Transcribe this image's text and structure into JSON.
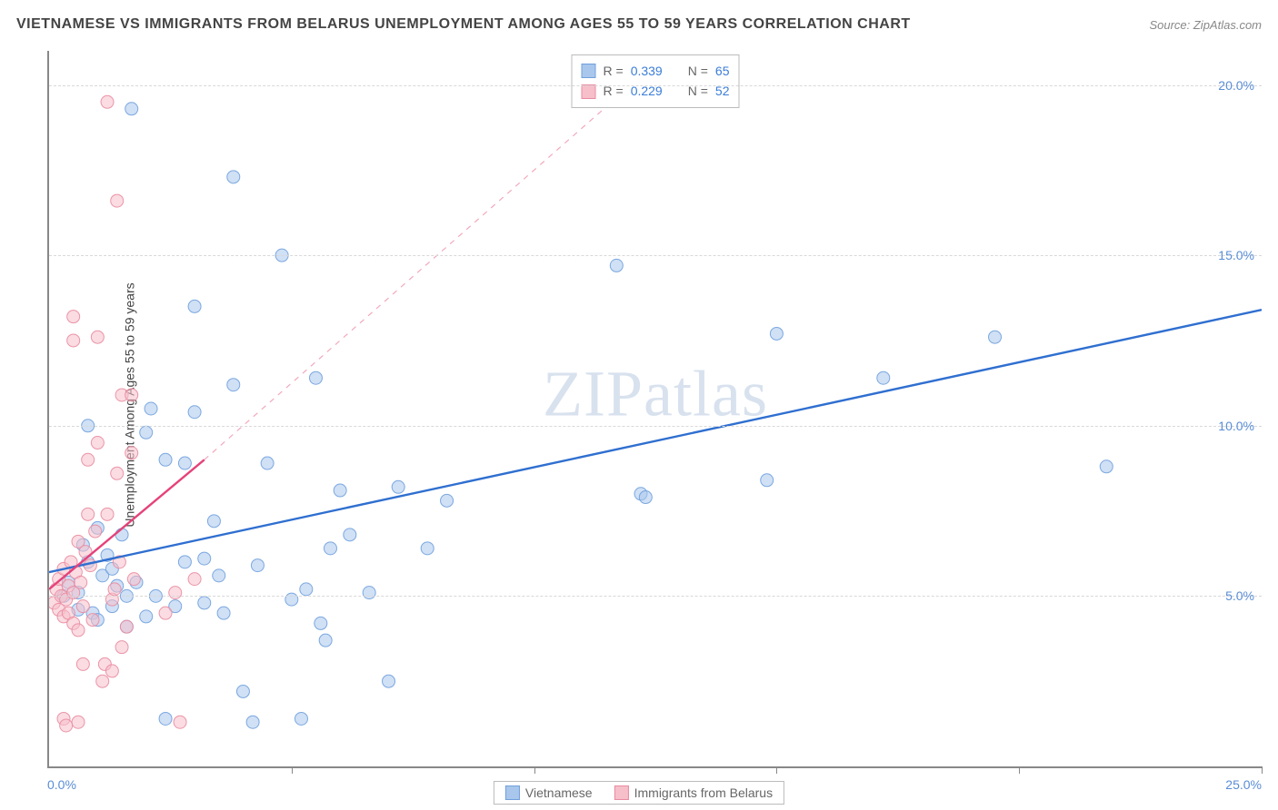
{
  "title": "VIETNAMESE VS IMMIGRANTS FROM BELARUS UNEMPLOYMENT AMONG AGES 55 TO 59 YEARS CORRELATION CHART",
  "source": "Source: ZipAtlas.com",
  "ylabel": "Unemployment Among Ages 55 to 59 years",
  "watermark": "ZIPatlas",
  "chart": {
    "type": "scatter",
    "xlim": [
      0,
      25
    ],
    "ylim": [
      0,
      21
    ],
    "x_origin_label": "0.0%",
    "x_max_label": "25.0%",
    "y_ticks": [
      5,
      10,
      15,
      20
    ],
    "y_tick_labels": [
      "5.0%",
      "10.0%",
      "15.0%",
      "20.0%"
    ],
    "x_tick_positions": [
      5,
      10,
      15,
      20,
      25
    ],
    "background_color": "#ffffff",
    "grid_color": "#d8d8d8",
    "axis_color": "#888888",
    "marker_radius": 7,
    "marker_opacity": 0.55,
    "marker_stroke_opacity": 0.9,
    "title_fontsize": 16,
    "label_fontsize": 14,
    "tick_color": "#5a8dd6"
  },
  "series": [
    {
      "name": "Vietnamese",
      "color_fill": "#a9c7ec",
      "color_stroke": "#6fa0dd",
      "R": "0.339",
      "N": "65",
      "trend_solid": {
        "x1": 0,
        "y1": 5.7,
        "x2": 25,
        "y2": 13.4,
        "color": "#2f6fd0",
        "width": 2.4
      },
      "points": [
        [
          0.3,
          5.0
        ],
        [
          0.4,
          5.4
        ],
        [
          0.6,
          5.1
        ],
        [
          0.8,
          6.0
        ],
        [
          0.6,
          4.6
        ],
        [
          0.9,
          4.5
        ],
        [
          1.1,
          5.6
        ],
        [
          1.2,
          6.2
        ],
        [
          1.4,
          5.3
        ],
        [
          1.3,
          4.7
        ],
        [
          0.7,
          6.5
        ],
        [
          1.0,
          7.0
        ],
        [
          1.6,
          5.0
        ],
        [
          1.5,
          6.8
        ],
        [
          1.8,
          5.4
        ],
        [
          2.0,
          4.4
        ],
        [
          2.2,
          5.0
        ],
        [
          1.6,
          4.1
        ],
        [
          2.4,
          1.4
        ],
        [
          2.6,
          4.7
        ],
        [
          0.8,
          10.0
        ],
        [
          2.0,
          9.8
        ],
        [
          2.4,
          9.0
        ],
        [
          2.1,
          10.5
        ],
        [
          2.8,
          8.9
        ],
        [
          3.0,
          10.4
        ],
        [
          3.2,
          6.1
        ],
        [
          3.0,
          13.5
        ],
        [
          3.5,
          5.6
        ],
        [
          3.6,
          4.5
        ],
        [
          3.8,
          11.2
        ],
        [
          4.0,
          2.2
        ],
        [
          4.2,
          1.3
        ],
        [
          4.3,
          5.9
        ],
        [
          4.5,
          8.9
        ],
        [
          1.7,
          19.3
        ],
        [
          3.8,
          17.3
        ],
        [
          4.8,
          15.0
        ],
        [
          5.0,
          4.9
        ],
        [
          5.2,
          1.4
        ],
        [
          5.3,
          5.2
        ],
        [
          5.5,
          11.4
        ],
        [
          5.6,
          4.2
        ],
        [
          5.7,
          3.7
        ],
        [
          5.8,
          6.4
        ],
        [
          6.0,
          8.1
        ],
        [
          6.2,
          6.8
        ],
        [
          6.6,
          5.1
        ],
        [
          7.0,
          2.5
        ],
        [
          7.2,
          8.2
        ],
        [
          7.8,
          6.4
        ],
        [
          8.2,
          7.8
        ],
        [
          11.7,
          14.7
        ],
        [
          12.2,
          8.0
        ],
        [
          12.3,
          7.9
        ],
        [
          14.8,
          8.4
        ],
        [
          15.0,
          12.7
        ],
        [
          17.2,
          11.4
        ],
        [
          19.5,
          12.6
        ],
        [
          21.8,
          8.8
        ],
        [
          2.8,
          6.0
        ],
        [
          3.2,
          4.8
        ],
        [
          3.4,
          7.2
        ],
        [
          1.0,
          4.3
        ],
        [
          1.3,
          5.8
        ]
      ]
    },
    {
      "name": "Immigrants from Belarus",
      "color_fill": "#f6bfca",
      "color_stroke": "#e98ba0",
      "R": "0.229",
      "N": "52",
      "trend_solid": {
        "x1": 0,
        "y1": 5.2,
        "x2": 3.2,
        "y2": 9.0,
        "color": "#e5427a",
        "width": 2.4
      },
      "trend_dashed": {
        "x1": 3.2,
        "y1": 9.0,
        "x2": 12.0,
        "y2": 20.0,
        "color": "#f1a9bc",
        "width": 1.2
      },
      "points": [
        [
          0.1,
          4.8
        ],
        [
          0.15,
          5.2
        ],
        [
          0.2,
          5.5
        ],
        [
          0.2,
          4.6
        ],
        [
          0.25,
          5.0
        ],
        [
          0.3,
          4.4
        ],
        [
          0.3,
          5.8
        ],
        [
          0.35,
          4.9
        ],
        [
          0.4,
          5.3
        ],
        [
          0.4,
          4.5
        ],
        [
          0.45,
          6.0
        ],
        [
          0.5,
          5.1
        ],
        [
          0.5,
          4.2
        ],
        [
          0.55,
          5.7
        ],
        [
          0.6,
          6.6
        ],
        [
          0.6,
          4.0
        ],
        [
          0.65,
          5.4
        ],
        [
          0.7,
          3.0
        ],
        [
          0.7,
          4.7
        ],
        [
          0.75,
          6.3
        ],
        [
          0.5,
          13.2
        ],
        [
          0.8,
          9.0
        ],
        [
          0.8,
          7.4
        ],
        [
          0.85,
          5.9
        ],
        [
          0.9,
          4.3
        ],
        [
          0.95,
          6.9
        ],
        [
          1.0,
          9.5
        ],
        [
          0.5,
          12.5
        ],
        [
          1.0,
          12.6
        ],
        [
          1.1,
          2.5
        ],
        [
          1.15,
          3.0
        ],
        [
          1.2,
          7.4
        ],
        [
          1.3,
          4.9
        ],
        [
          1.3,
          2.8
        ],
        [
          1.35,
          5.2
        ],
        [
          1.4,
          8.6
        ],
        [
          1.45,
          6.0
        ],
        [
          1.5,
          10.9
        ],
        [
          1.5,
          3.5
        ],
        [
          1.6,
          4.1
        ],
        [
          1.7,
          9.2
        ],
        [
          1.7,
          10.9
        ],
        [
          1.75,
          5.5
        ],
        [
          0.3,
          1.4
        ],
        [
          0.35,
          1.2
        ],
        [
          0.6,
          1.3
        ],
        [
          1.2,
          19.5
        ],
        [
          1.4,
          16.6
        ],
        [
          2.4,
          4.5
        ],
        [
          2.6,
          5.1
        ],
        [
          2.7,
          1.3
        ],
        [
          3.0,
          5.5
        ]
      ]
    }
  ],
  "stats_legend": {
    "rows": [
      {
        "swatch_fill": "#a9c7ec",
        "swatch_stroke": "#6fa0dd",
        "r_label": "R =",
        "r_val": "0.339",
        "n_label": "N =",
        "n_val": "65"
      },
      {
        "swatch_fill": "#f6bfca",
        "swatch_stroke": "#e98ba0",
        "r_label": "R =",
        "r_val": "0.229",
        "n_label": "N =",
        "n_val": "52"
      }
    ]
  },
  "bottom_legend": [
    {
      "swatch_fill": "#a9c7ec",
      "swatch_stroke": "#6fa0dd",
      "label": "Vietnamese"
    },
    {
      "swatch_fill": "#f6bfca",
      "swatch_stroke": "#e98ba0",
      "label": "Immigrants from Belarus"
    }
  ]
}
